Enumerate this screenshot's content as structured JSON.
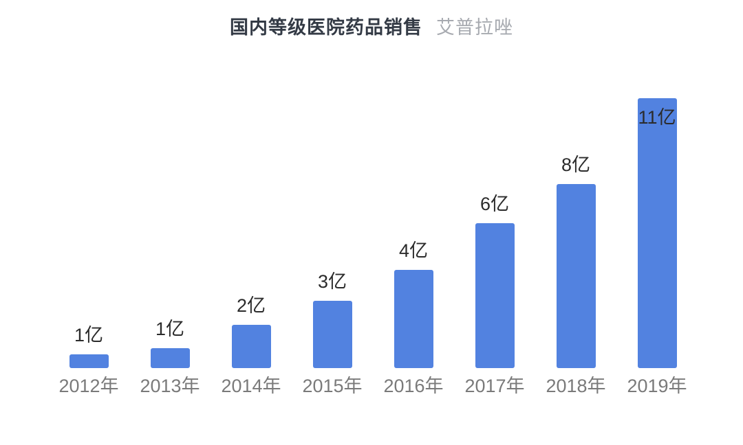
{
  "header": {
    "title": "国内等级医院药品销售",
    "subtitle": "艾普拉唑"
  },
  "chart_data": {
    "type": "bar",
    "title": "国内等级医院药品销售",
    "subtitle": "艾普拉唑",
    "categories": [
      "2012年",
      "2013年",
      "2014年",
      "2015年",
      "2016年",
      "2017年",
      "2018年",
      "2019年"
    ],
    "values": [
      1,
      1,
      2,
      3,
      4,
      6,
      8,
      11
    ],
    "value_labels": [
      "1亿",
      "1亿",
      "2亿",
      "3亿",
      "4亿",
      "6亿",
      "8亿",
      "11亿"
    ],
    "bar_heights_estimated": [
      0.56,
      0.81,
      1.76,
      2.74,
      4.0,
      5.9,
      7.5,
      11
    ],
    "unit": "亿",
    "xlabel": "",
    "ylabel": "",
    "ylim": [
      0,
      11.5
    ],
    "grid": false,
    "legend": "none",
    "axis_lines": "none",
    "value_label_position": "above-bar",
    "value_label_inside": [
      false,
      false,
      false,
      false,
      false,
      false,
      false,
      true
    ]
  },
  "colors": {
    "background": "#ffffff",
    "bar": "#5282e0",
    "title": "#333a45",
    "subtitle": "#a7aab0",
    "value_label": "#2b2b2b",
    "axis_label": "#7a7a7a"
  }
}
